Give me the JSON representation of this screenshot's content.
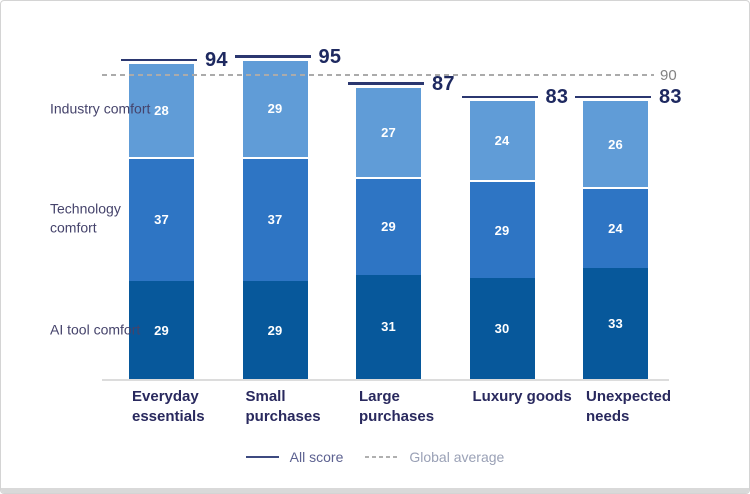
{
  "chart_data": {
    "type": "bar",
    "stacked": true,
    "orientation": "vertical",
    "grid": "off",
    "categories": [
      "Everyday essentials",
      "Small purchases",
      "Large purchases",
      "Luxury goods",
      "Unexpected needs"
    ],
    "series": [
      {
        "name": "AI tool comfort",
        "color": "#07589b",
        "values": [
          29,
          29,
          31,
          30,
          33
        ]
      },
      {
        "name": "Technology comfort",
        "color": "#2e75c4",
        "values": [
          37,
          37,
          29,
          29,
          24
        ]
      },
      {
        "name": "Industry comfort",
        "color": "#609cd7",
        "values": [
          28,
          29,
          27,
          24,
          26
        ]
      }
    ],
    "totals": [
      94,
      95,
      87,
      83,
      83
    ],
    "global_average": 90,
    "ylim": [
      0,
      100
    ],
    "legend_position": "bottom",
    "legend": [
      {
        "label": "All score",
        "line_style": "solid",
        "line_color": "#3d4a80",
        "text_color": "#5c6190"
      },
      {
        "label": "Global average",
        "line_style": "dashed",
        "line_color": "#b0b0b0",
        "text_color": "#9aa1b6"
      }
    ],
    "palette": {
      "score_text": "#1e2960",
      "score_line": "#2b3770",
      "category_text": "#29295e",
      "row_label_text": "#45436b",
      "dashed_line": "#ababab",
      "avg_text": "#828282",
      "axis_line": "#dcdcdc",
      "segment_gap": "#ffffff",
      "segment_value_text": "#ffffff"
    }
  }
}
